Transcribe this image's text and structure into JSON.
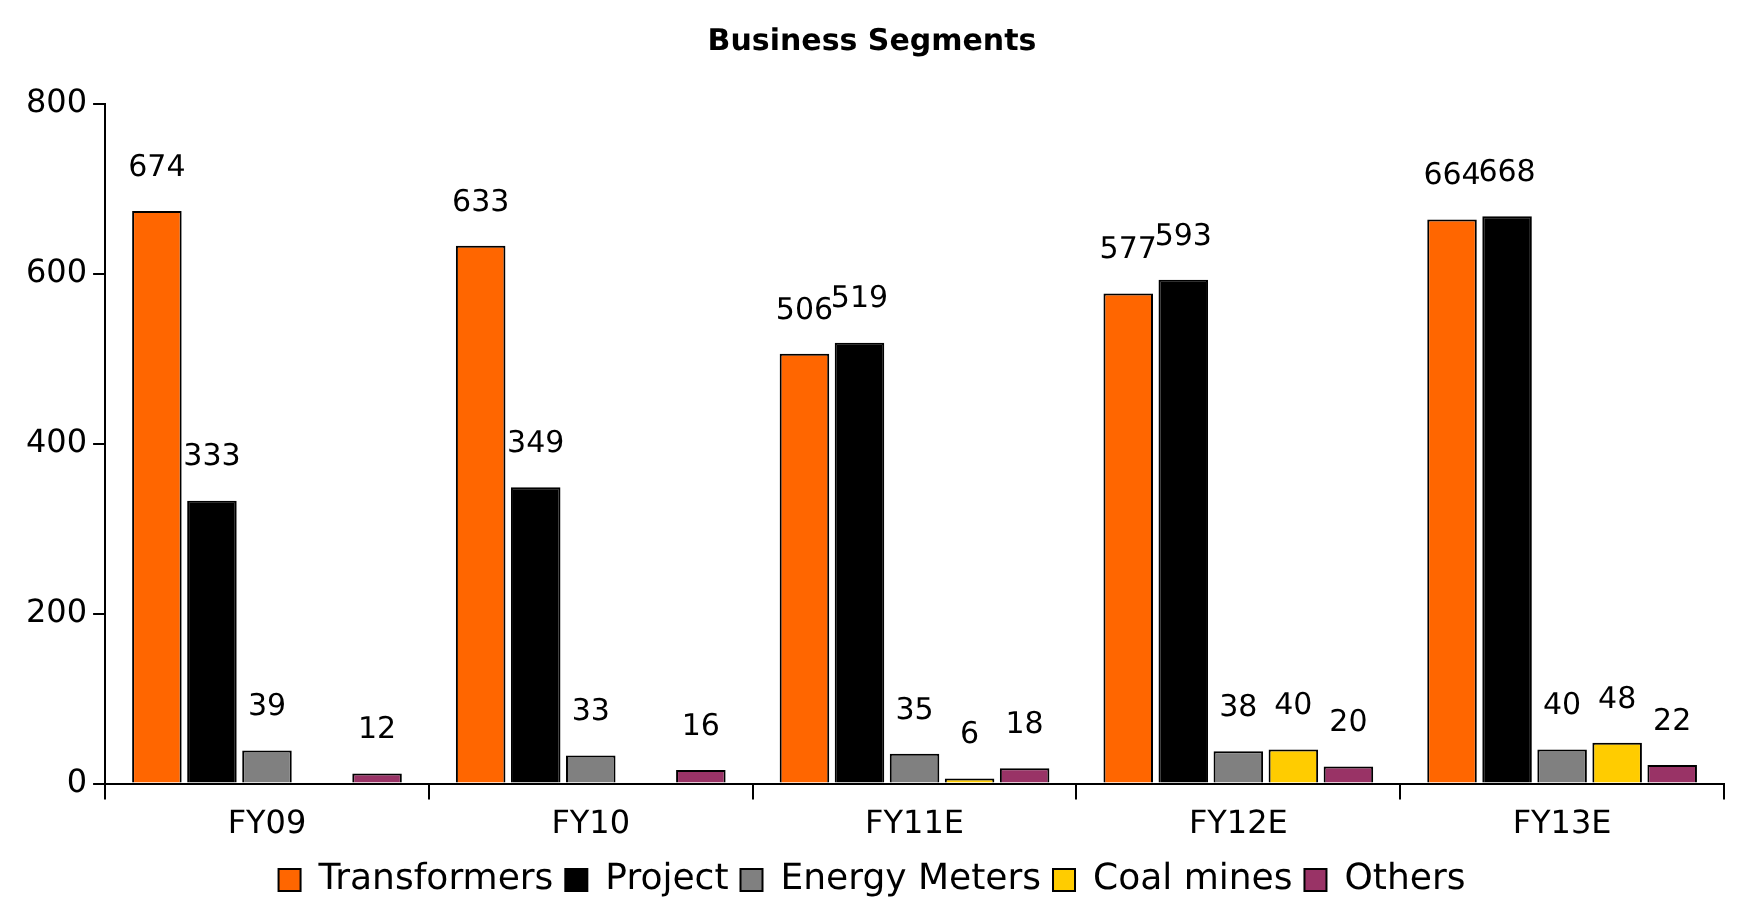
{
  "chart_data": {
    "type": "bar",
    "title": "Business Segments",
    "categories": [
      "FY09",
      "FY10",
      "FY11E",
      "FY12E",
      "FY13E"
    ],
    "series": [
      {
        "name": "Transformers",
        "color": "#ff6600",
        "values": [
          674,
          633,
          506,
          577,
          664
        ]
      },
      {
        "name": "Project",
        "color": "#000000",
        "values": [
          333,
          349,
          519,
          593,
          668
        ]
      },
      {
        "name": "Energy Meters",
        "color": "#808080",
        "values": [
          39,
          33,
          35,
          38,
          40
        ]
      },
      {
        "name": "Coal mines",
        "color": "#ffcc00",
        "values": [
          null,
          null,
          6,
          40,
          48
        ]
      },
      {
        "name": "Others",
        "color": "#993366",
        "values": [
          12,
          16,
          18,
          20,
          22
        ]
      }
    ],
    "ylim": [
      0,
      800
    ],
    "yticks": [
      0,
      200,
      400,
      600,
      800
    ],
    "legend": "bottom",
    "data_labels": true
  }
}
